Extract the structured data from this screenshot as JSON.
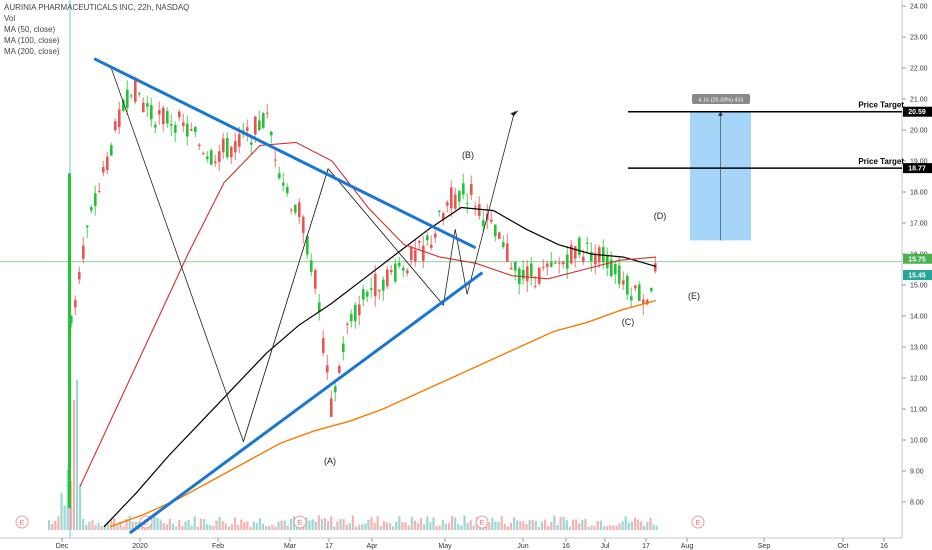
{
  "legend": {
    "title": "AURINIA PHARMACEUTICALS INC, 22h, NASDAQ",
    "vol": "Vol",
    "ma50": "MA (50, close)",
    "ma100": "MA (100, close)",
    "ma200": "MA (200, close)"
  },
  "colors": {
    "up": "#26a69a",
    "upBright": "#21c431",
    "down": "#ef5350",
    "ma50": "#d32f2f",
    "ma100": "#000000",
    "ma200": "#f57c00",
    "trendline": "#1976d2",
    "target_box": "#90caf9",
    "current_price_line": "#4caf50"
  },
  "chart_data": {
    "type": "candlestick",
    "title": "AURINIA PHARMACEUTICALS INC, 22h, NASDAQ",
    "y_axis": {
      "ticks": [
        "24.00",
        "23.00",
        "22.00",
        "21.00",
        "20.00",
        "19.00",
        "18.00",
        "17.00",
        "16.00",
        "15.00",
        "14.00",
        "13.00",
        "12.00",
        "11.00",
        "10.00",
        "9.00",
        "8.00"
      ],
      "range": [
        7.2,
        24.2
      ]
    },
    "x_axis": {
      "ticks": [
        "Dec",
        "2020",
        "Feb",
        "Mar",
        "17",
        "Apr",
        "May",
        "Jun",
        "16",
        "Jul",
        "17",
        "Aug",
        "Sep",
        "Oct",
        "16"
      ]
    },
    "price_labels": [
      "20.59",
      "18.77",
      "15.75",
      "15.45"
    ],
    "annotations": {
      "price_target_label": "Price Target",
      "measure_label": "4.15 (25.33%) 415",
      "wave_labels": [
        "(A)",
        "(B)",
        "(C)",
        "(D)",
        "(E)"
      ]
    },
    "price_targets": [
      20.59,
      18.77
    ],
    "current_price": 15.75,
    "swing_points": [
      {
        "label": "start",
        "x": "Dec 30",
        "y": 22.0
      },
      {
        "label": "(A)",
        "x": "Mar 17",
        "y": 9.95
      },
      {
        "label": "(B)",
        "x": "May 06",
        "y": 18.75
      },
      {
        "label": "(C)",
        "x": "Jul 13",
        "y": 14.35
      },
      {
        "label": "(D)",
        "x": "Jul 20",
        "y": 16.8
      },
      {
        "label": "(E)",
        "x": "Jul 27",
        "y": 14.7
      },
      {
        "label": "projection",
        "x": "Aug 24",
        "y": 20.6
      }
    ],
    "trendlines": [
      {
        "name": "upper",
        "from": {
          "x": "Dec 20",
          "y": 22.3
        },
        "to": {
          "x": "Aug 01",
          "y": 16.2
        }
      },
      {
        "name": "lower",
        "from": {
          "x": "Jan 10",
          "y": 7.0
        },
        "to": {
          "x": "Aug 05",
          "y": 15.4
        }
      }
    ],
    "ma200": [
      7.2,
      7.6,
      8.1,
      8.7,
      9.3,
      9.9,
      10.3,
      10.6,
      11.0,
      11.5,
      12.0,
      12.5,
      13.0,
      13.5,
      13.8,
      14.2,
      14.5
    ],
    "ma100": [
      7.2,
      8.3,
      9.5,
      10.6,
      11.7,
      12.8,
      13.7,
      14.4,
      15.2,
      16.0,
      16.8,
      17.5,
      17.4,
      16.8,
      16.3,
      16.0,
      15.9,
      15.6
    ],
    "ma50": [
      8.5,
      11.0,
      13.5,
      16.0,
      18.3,
      19.5,
      19.6,
      19.0,
      17.5,
      16.3,
      15.9,
      15.7,
      15.3,
      15.2,
      15.5,
      15.8,
      15.9
    ]
  }
}
